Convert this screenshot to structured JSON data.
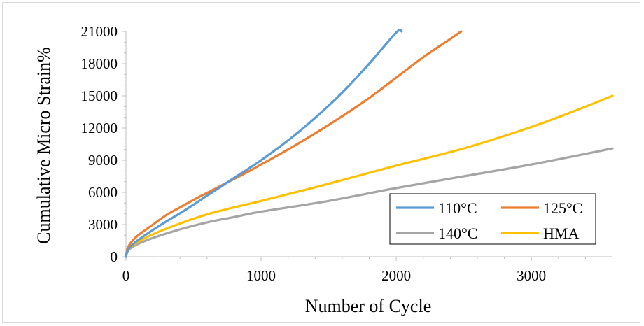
{
  "chart_data": {
    "type": "line",
    "title": "",
    "xlabel": "Number of Cycle",
    "ylabel": "Cumulative Micro Strain%",
    "xlim": [
      0,
      3600
    ],
    "ylim": [
      0,
      21000
    ],
    "x_ticks": [
      "0",
      "1000",
      "2000",
      "3000"
    ],
    "y_ticks": [
      "0",
      "3000",
      "6000",
      "9000",
      "12000",
      "15000",
      "18000",
      "21000"
    ],
    "grid": false,
    "legend_position": "bottom-right",
    "series": [
      {
        "name": "110°C",
        "color": "#5b9bd5",
        "x": [
          0,
          10,
          30,
          60,
          100,
          200,
          300,
          400,
          500,
          600,
          700,
          800,
          900,
          1000,
          1200,
          1400,
          1600,
          1800,
          2000,
          2040
        ],
        "y": [
          0,
          500,
          900,
          1250,
          1650,
          2500,
          3300,
          4050,
          4850,
          5700,
          6500,
          7350,
          8150,
          9000,
          10850,
          12950,
          15300,
          18000,
          20900,
          21000
        ]
      },
      {
        "name": "125°C",
        "color": "#ed7d31",
        "x": [
          0,
          10,
          30,
          60,
          100,
          200,
          300,
          400,
          500,
          600,
          700,
          800,
          900,
          1000,
          1200,
          1400,
          1600,
          1800,
          2000,
          2200,
          2400,
          2480
        ],
        "y": [
          0,
          700,
          1200,
          1650,
          2100,
          3000,
          3900,
          4600,
          5300,
          5950,
          6600,
          7250,
          7900,
          8600,
          10000,
          11500,
          13100,
          14800,
          16700,
          18600,
          20300,
          21000
        ]
      },
      {
        "name": "140°C",
        "color": "#a5a5a5",
        "x": [
          0,
          10,
          30,
          60,
          100,
          200,
          400,
          600,
          800,
          1000,
          1500,
          2000,
          2500,
          3000,
          3600
        ],
        "y": [
          0,
          450,
          750,
          1000,
          1250,
          1750,
          2550,
          3200,
          3700,
          4200,
          5200,
          6400,
          7500,
          8600,
          10100
        ]
      },
      {
        "name": "HMA",
        "color": "#ffc000",
        "x": [
          0,
          10,
          30,
          60,
          100,
          200,
          400,
          600,
          800,
          1000,
          1500,
          2000,
          2500,
          3000,
          3300,
          3600
        ],
        "y": [
          0,
          500,
          850,
          1150,
          1450,
          2100,
          3100,
          3950,
          4600,
          5200,
          6800,
          8500,
          10100,
          12100,
          13500,
          15000
        ]
      }
    ]
  }
}
